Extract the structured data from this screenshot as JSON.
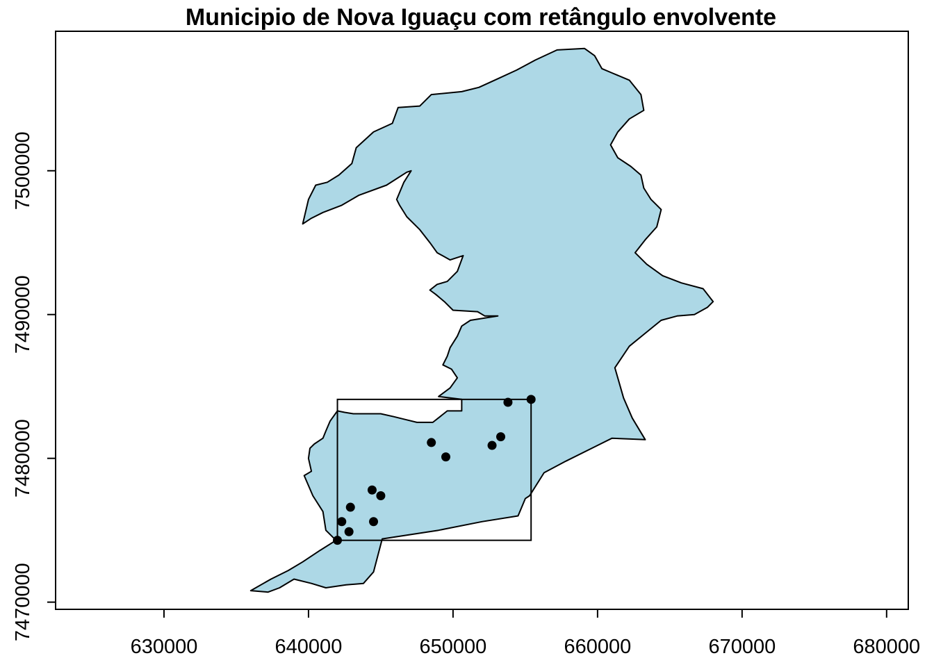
{
  "title": "Municipio de Nova Iguaçu com retângulo envolvente",
  "colors": {
    "polygon_fill": "#add8e6",
    "polygon_stroke": "#000000",
    "point_color": "#000000",
    "bbox_stroke": "#000000"
  },
  "chart_data": {
    "type": "map",
    "title": "Municipio de Nova Iguaçu com retângulo envolvente",
    "xlabel": "",
    "ylabel": "",
    "xlim": [
      622500,
      681500
    ],
    "ylim": [
      7469500,
      7509700
    ],
    "x_ticks": [
      630000,
      640000,
      650000,
      660000,
      670000,
      680000
    ],
    "x_tick_labels": [
      "630000",
      "640000",
      "650000",
      "660000",
      "670000",
      "680000"
    ],
    "y_ticks": [
      7470000,
      7480000,
      7490000,
      7500000
    ],
    "y_tick_labels": [
      "7470000",
      "7480000",
      "7490000",
      "7500000"
    ],
    "grid": false,
    "legend": "none",
    "municipality_outline": [
      [
        636000,
        7470800
      ],
      [
        637200,
        7470700
      ],
      [
        638000,
        7471000
      ],
      [
        639000,
        7471600
      ],
      [
        640200,
        7471300
      ],
      [
        641200,
        7471000
      ],
      [
        642600,
        7471200
      ],
      [
        643800,
        7471300
      ],
      [
        644500,
        7472100
      ],
      [
        645100,
        7474400
      ],
      [
        649000,
        7475000
      ],
      [
        652000,
        7475600
      ],
      [
        654500,
        7476000
      ],
      [
        655000,
        7477200
      ],
      [
        655300,
        7477400
      ],
      [
        656300,
        7479000
      ],
      [
        657800,
        7479800
      ],
      [
        659800,
        7480800
      ],
      [
        661000,
        7481400
      ],
      [
        663300,
        7481300
      ],
      [
        662400,
        7482800
      ],
      [
        661800,
        7484200
      ],
      [
        661200,
        7486300
      ],
      [
        662200,
        7487800
      ],
      [
        663300,
        7488700
      ],
      [
        664400,
        7489600
      ],
      [
        665500,
        7489900
      ],
      [
        666700,
        7490000
      ],
      [
        667600,
        7490500
      ],
      [
        668000,
        7490900
      ],
      [
        667300,
        7491800
      ],
      [
        665800,
        7492200
      ],
      [
        664500,
        7492700
      ],
      [
        663400,
        7493500
      ],
      [
        662600,
        7494300
      ],
      [
        663300,
        7495200
      ],
      [
        664100,
        7496100
      ],
      [
        664400,
        7497300
      ],
      [
        663700,
        7498000
      ],
      [
        663200,
        7498800
      ],
      [
        663000,
        7499700
      ],
      [
        662300,
        7500300
      ],
      [
        661400,
        7500900
      ],
      [
        660900,
        7501800
      ],
      [
        661400,
        7502700
      ],
      [
        662200,
        7503600
      ],
      [
        663200,
        7504200
      ],
      [
        663000,
        7505300
      ],
      [
        662200,
        7506300
      ],
      [
        661000,
        7506800
      ],
      [
        660300,
        7507100
      ],
      [
        659800,
        7508000
      ],
      [
        659100,
        7508500
      ],
      [
        657200,
        7508400
      ],
      [
        655700,
        7507700
      ],
      [
        654400,
        7507000
      ],
      [
        653100,
        7506400
      ],
      [
        651800,
        7505800
      ],
      [
        650600,
        7505500
      ],
      [
        648500,
        7505300
      ],
      [
        647700,
        7504500
      ],
      [
        646200,
        7504400
      ],
      [
        645800,
        7503300
      ],
      [
        644500,
        7502700
      ],
      [
        643300,
        7501600
      ],
      [
        643000,
        7500500
      ],
      [
        642100,
        7499700
      ],
      [
        641300,
        7499200
      ],
      [
        640500,
        7499000
      ],
      [
        640000,
        7498000
      ],
      [
        639600,
        7496300
      ],
      [
        640200,
        7496700
      ],
      [
        641000,
        7497100
      ],
      [
        642300,
        7497600
      ],
      [
        643500,
        7498300
      ],
      [
        645400,
        7499000
      ],
      [
        646800,
        7499900
      ],
      [
        647100,
        7500000
      ],
      [
        646600,
        7499200
      ],
      [
        646100,
        7498000
      ],
      [
        646300,
        7497600
      ],
      [
        646800,
        7496800
      ],
      [
        647700,
        7495900
      ],
      [
        648400,
        7495000
      ],
      [
        648900,
        7494300
      ],
      [
        649800,
        7493800
      ],
      [
        650700,
        7494100
      ],
      [
        650300,
        7493000
      ],
      [
        649600,
        7492300
      ],
      [
        648900,
        7492100
      ],
      [
        648400,
        7491700
      ],
      [
        648800,
        7491400
      ],
      [
        649400,
        7490900
      ],
      [
        650000,
        7490300
      ],
      [
        651700,
        7490200
      ],
      [
        652200,
        7489900
      ],
      [
        653100,
        7489900
      ],
      [
        651200,
        7489600
      ],
      [
        650600,
        7489200
      ],
      [
        650300,
        7488500
      ],
      [
        649800,
        7487700
      ],
      [
        649600,
        7487100
      ],
      [
        649300,
        7486500
      ],
      [
        649900,
        7486200
      ],
      [
        650300,
        7485600
      ],
      [
        649800,
        7484900
      ],
      [
        649000,
        7484300
      ],
      [
        650600,
        7484100
      ],
      [
        650600,
        7483300
      ],
      [
        649600,
        7483300
      ],
      [
        649100,
        7482900
      ],
      [
        648600,
        7482500
      ],
      [
        648200,
        7482500
      ],
      [
        647500,
        7482500
      ],
      [
        646700,
        7482700
      ],
      [
        645900,
        7482900
      ],
      [
        645000,
        7483100
      ],
      [
        644000,
        7483100
      ],
      [
        643100,
        7483100
      ],
      [
        642500,
        7483200
      ],
      [
        642000,
        7483300
      ],
      [
        641500,
        7482600
      ],
      [
        641200,
        7481900
      ],
      [
        641000,
        7481400
      ],
      [
        640400,
        7481000
      ],
      [
        640100,
        7480700
      ],
      [
        640000,
        7480000
      ],
      [
        640200,
        7479100
      ],
      [
        639700,
        7478800
      ],
      [
        640300,
        7477400
      ],
      [
        641000,
        7476300
      ],
      [
        641200,
        7475000
      ],
      [
        641900,
        7474300
      ],
      [
        640800,
        7473600
      ],
      [
        639600,
        7472800
      ],
      [
        638600,
        7472200
      ],
      [
        637400,
        7471600
      ],
      [
        636000,
        7470800
      ]
    ],
    "bounding_box": {
      "xmin": 642000,
      "xmax": 655400,
      "ymin": 7474300,
      "ymax": 7484100
    },
    "points": [
      {
        "x": 655400,
        "y": 7484100
      },
      {
        "x": 653800,
        "y": 7483900
      },
      {
        "x": 648500,
        "y": 7481100
      },
      {
        "x": 653300,
        "y": 7481500
      },
      {
        "x": 652700,
        "y": 7480900
      },
      {
        "x": 649500,
        "y": 7480100
      },
      {
        "x": 644400,
        "y": 7477800
      },
      {
        "x": 645000,
        "y": 7477400
      },
      {
        "x": 642900,
        "y": 7476600
      },
      {
        "x": 642300,
        "y": 7475600
      },
      {
        "x": 644500,
        "y": 7475600
      },
      {
        "x": 642800,
        "y": 7474900
      },
      {
        "x": 642000,
        "y": 7474300
      }
    ]
  }
}
